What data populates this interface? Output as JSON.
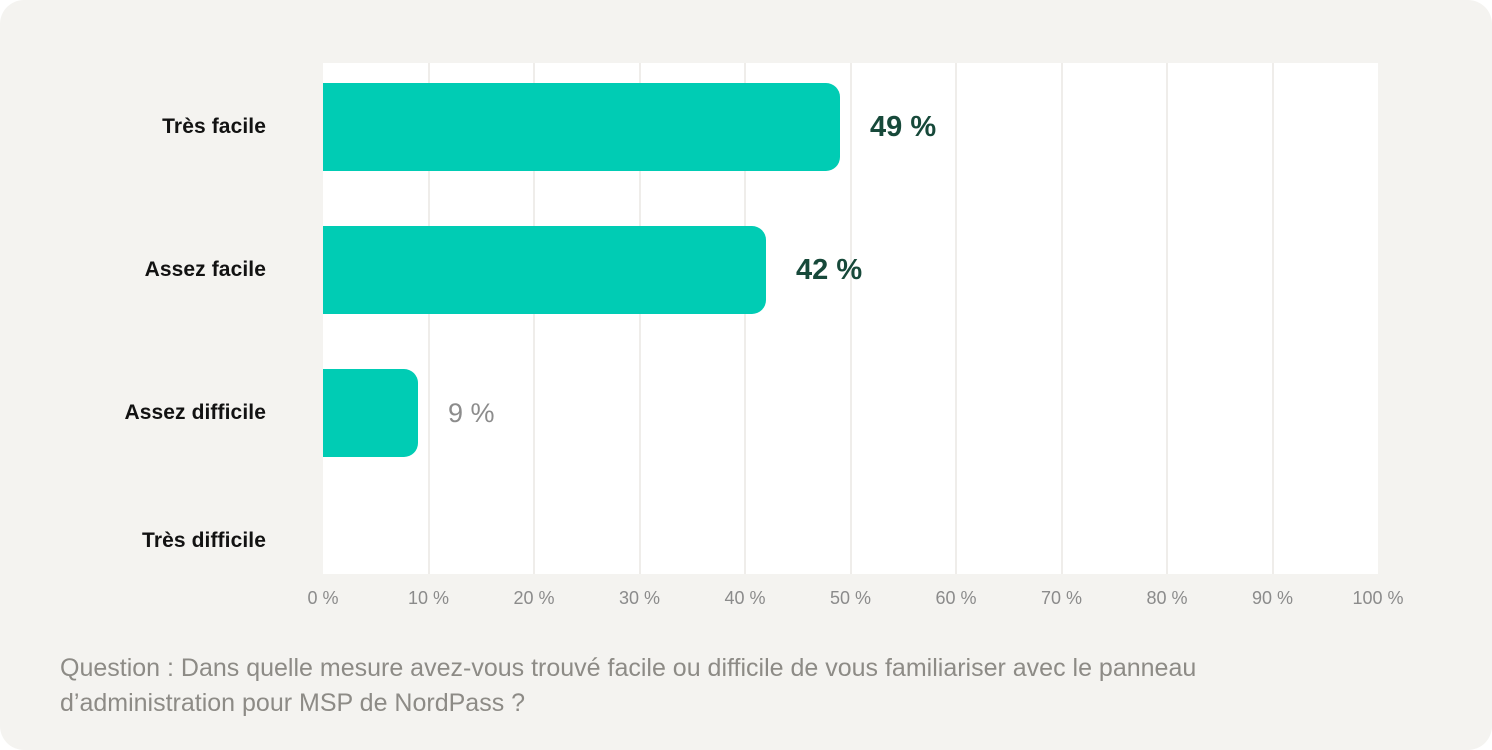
{
  "colors": {
    "card_background": "#f4f3f0",
    "plot_background": "#ffffff",
    "bar": "#00ccb4",
    "value_label_strong": "#17493a",
    "value_label_muted": "#8c8c8c",
    "category_label": "#121212",
    "tick_label": "#8b8b8b",
    "gridline": "#efedea",
    "caption": "#8d8b86"
  },
  "chart_data": {
    "type": "bar",
    "orientation": "horizontal",
    "title": "",
    "categories": [
      "Très facile",
      "Assez facile",
      "Assez difficile",
      "Très difficile"
    ],
    "values": [
      49,
      42,
      9,
      0
    ],
    "value_labels": [
      "49 %",
      "42 %",
      "9 %",
      ""
    ],
    "value_label_styles": [
      "strong",
      "strong",
      "muted",
      "muted"
    ],
    "x_ticks": [
      "0 %",
      "10 %",
      "20 %",
      "30 %",
      "40 %",
      "50 %",
      "60 %",
      "70 %",
      "80 %",
      "90 %",
      "100 %"
    ],
    "xlim": [
      0,
      100
    ],
    "grid": true,
    "legend": "none",
    "caption": "Question : Dans quelle mesure avez-vous trouvé facile ou difficile de vous familiariser avec le panneau d’administration pour MSP de NordPass ?"
  }
}
